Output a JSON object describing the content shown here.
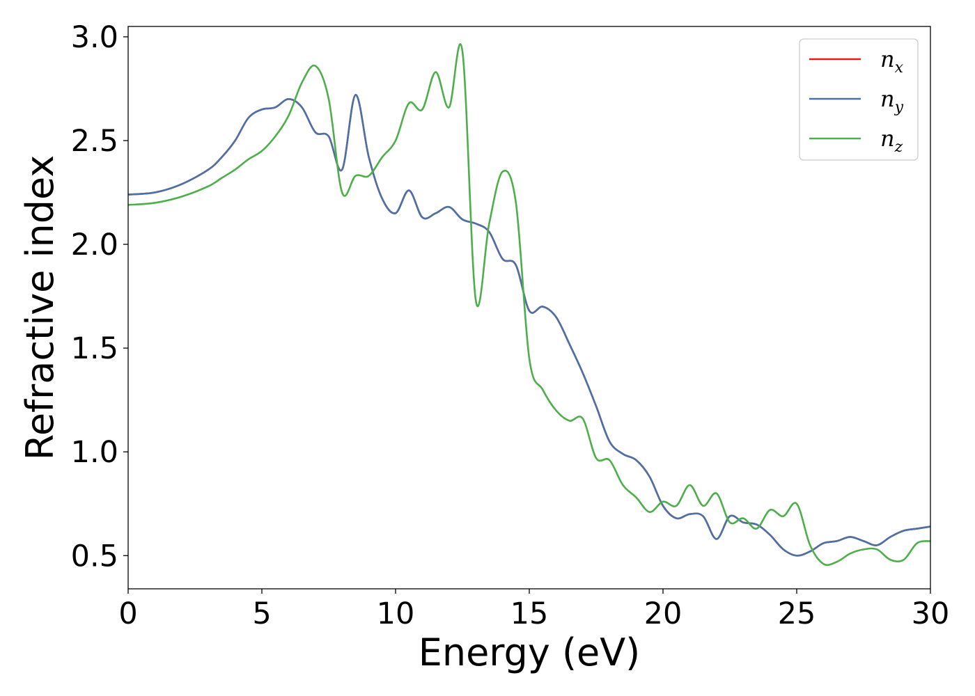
{
  "chart_data": {
    "type": "line",
    "xlabel": "Energy (eV)",
    "ylabel": "Refractive index",
    "xlim": [
      0,
      30
    ],
    "ylim": [
      0.34,
      3.05
    ],
    "xticks": [
      0,
      5,
      10,
      15,
      20,
      25,
      30
    ],
    "xtick_labels": [
      "0",
      "5",
      "10",
      "15",
      "20",
      "25",
      "30"
    ],
    "yticks": [
      0.5,
      1.0,
      1.5,
      2.0,
      2.5,
      3.0
    ],
    "ytick_labels": [
      "0.5",
      "1.0",
      "1.5",
      "2.0",
      "2.5",
      "3.0"
    ],
    "grid": false,
    "legend_position": "top-right",
    "x": [
      0,
      1,
      2,
      3,
      3.5,
      4,
      4.5,
      5,
      5.5,
      6,
      6.5,
      7,
      7.5,
      8,
      8.5,
      9,
      9.5,
      10,
      10.5,
      11,
      11.5,
      12,
      12.5,
      13,
      13.5,
      14,
      14.5,
      15,
      15.5,
      16,
      16.5,
      17,
      17.5,
      18,
      18.5,
      19,
      19.5,
      20,
      20.5,
      21,
      21.5,
      22,
      22.5,
      23,
      23.5,
      24,
      24.5,
      25,
      25.5,
      26,
      26.5,
      27,
      27.5,
      28,
      28.5,
      29,
      29.5,
      30
    ],
    "series": [
      {
        "name": "n",
        "subscript": "x",
        "color": "#e41a1c",
        "values": [
          2.24,
          2.25,
          2.29,
          2.36,
          2.42,
          2.5,
          2.61,
          2.65,
          2.66,
          2.7,
          2.66,
          2.54,
          2.52,
          2.36,
          2.72,
          2.42,
          2.22,
          2.15,
          2.26,
          2.13,
          2.15,
          2.18,
          2.12,
          2.1,
          2.06,
          1.93,
          1.9,
          1.68,
          1.7,
          1.65,
          1.52,
          1.38,
          1.22,
          1.05,
          0.99,
          0.96,
          0.88,
          0.74,
          0.68,
          0.7,
          0.69,
          0.58,
          0.69,
          0.66,
          0.65,
          0.6,
          0.53,
          0.5,
          0.52,
          0.56,
          0.57,
          0.59,
          0.57,
          0.55,
          0.59,
          0.62,
          0.63,
          0.64
        ]
      },
      {
        "name": "n",
        "subscript": "y",
        "color": "#4a72a8",
        "values": [
          2.24,
          2.25,
          2.29,
          2.36,
          2.42,
          2.5,
          2.61,
          2.65,
          2.66,
          2.7,
          2.66,
          2.54,
          2.52,
          2.36,
          2.72,
          2.42,
          2.22,
          2.15,
          2.26,
          2.13,
          2.15,
          2.18,
          2.12,
          2.1,
          2.06,
          1.93,
          1.9,
          1.68,
          1.7,
          1.65,
          1.52,
          1.38,
          1.22,
          1.05,
          0.99,
          0.96,
          0.88,
          0.74,
          0.68,
          0.7,
          0.69,
          0.58,
          0.69,
          0.66,
          0.65,
          0.6,
          0.53,
          0.5,
          0.52,
          0.56,
          0.57,
          0.59,
          0.57,
          0.55,
          0.59,
          0.62,
          0.63,
          0.64
        ]
      },
      {
        "name": "n",
        "subscript": "z",
        "color": "#4daf4a",
        "values": [
          2.19,
          2.2,
          2.23,
          2.28,
          2.32,
          2.36,
          2.41,
          2.45,
          2.52,
          2.62,
          2.78,
          2.86,
          2.7,
          2.25,
          2.33,
          2.33,
          2.42,
          2.5,
          2.68,
          2.65,
          2.83,
          2.66,
          2.93,
          1.73,
          2.1,
          2.35,
          2.2,
          1.45,
          1.3,
          1.2,
          1.15,
          1.16,
          0.97,
          0.96,
          0.84,
          0.78,
          0.71,
          0.76,
          0.74,
          0.84,
          0.74,
          0.8,
          0.66,
          0.68,
          0.63,
          0.72,
          0.69,
          0.75,
          0.55,
          0.46,
          0.47,
          0.51,
          0.53,
          0.53,
          0.48,
          0.48,
          0.56,
          0.57
        ]
      }
    ]
  }
}
